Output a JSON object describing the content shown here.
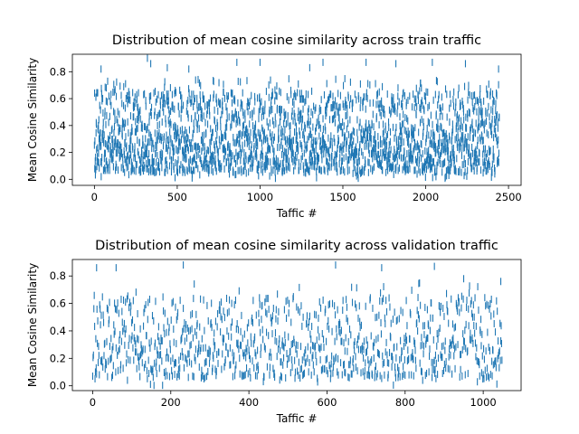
{
  "chart_data": [
    {
      "type": "scatter",
      "marker": "vertical-line",
      "title": "Distribution of mean cosine similarity across train traffic",
      "xlabel": "Taffic #",
      "ylabel": "Mean Cosine Similarity",
      "xlim": [
        -133,
        2576
      ],
      "ylim": [
        -0.045,
        0.93
      ],
      "xticks": [
        0,
        500,
        1000,
        1500,
        2000,
        2500
      ],
      "xtick_labels": [
        "0",
        "500",
        "1000",
        "1500",
        "2000",
        "2500"
      ],
      "yticks": [
        0.0,
        0.2,
        0.4,
        0.6,
        0.8
      ],
      "ytick_labels": [
        "0.0",
        "0.2",
        "0.4",
        "0.6",
        "0.8"
      ],
      "color": "#1f77b4",
      "n_points": 2445,
      "distribution": {
        "dense_band": [
          0.05,
          0.35
        ],
        "upper_band": [
          0.35,
          0.65
        ],
        "max": 0.9
      },
      "notable_points": [
        {
          "x": 40,
          "y": 0.82
        },
        {
          "x": 320,
          "y": 0.9
        },
        {
          "x": 340,
          "y": 0.86
        },
        {
          "x": 440,
          "y": 0.83
        },
        {
          "x": 570,
          "y": 0.82
        },
        {
          "x": 860,
          "y": 0.87
        },
        {
          "x": 1000,
          "y": 0.87
        },
        {
          "x": 1300,
          "y": 0.83
        },
        {
          "x": 1380,
          "y": 0.87
        },
        {
          "x": 1640,
          "y": 0.87
        },
        {
          "x": 1820,
          "y": 0.86
        },
        {
          "x": 2040,
          "y": 0.87
        },
        {
          "x": 2240,
          "y": 0.86
        },
        {
          "x": 2440,
          "y": 0.82
        }
      ]
    },
    {
      "type": "scatter",
      "marker": "vertical-line",
      "title": "Distribution of mean cosine similarity across validation traffic",
      "xlabel": "Taffic #",
      "ylabel": "Mean Cosine Similarity",
      "xlim": [
        -52,
        1097
      ],
      "ylim": [
        -0.035,
        0.92
      ],
      "xticks": [
        0,
        200,
        400,
        600,
        800,
        1000
      ],
      "xtick_labels": [
        "0",
        "200",
        "400",
        "600",
        "800",
        "1000"
      ],
      "yticks": [
        0.0,
        0.2,
        0.4,
        0.6,
        0.8
      ],
      "ytick_labels": [
        "0.0",
        "0.2",
        "0.4",
        "0.6",
        "0.8"
      ],
      "color": "#1f77b4",
      "n_points": 1049,
      "distribution": {
        "dense_band": [
          0.05,
          0.35
        ],
        "upper_band": [
          0.35,
          0.65
        ],
        "max": 0.88
      },
      "notable_points": [
        {
          "x": 10,
          "y": 0.86
        },
        {
          "x": 60,
          "y": 0.86
        },
        {
          "x": 232,
          "y": 0.88
        },
        {
          "x": 622,
          "y": 0.88
        },
        {
          "x": 740,
          "y": 0.86
        },
        {
          "x": 875,
          "y": 0.87
        },
        {
          "x": 950,
          "y": 0.78
        },
        {
          "x": 1045,
          "y": 0.76
        }
      ]
    }
  ]
}
